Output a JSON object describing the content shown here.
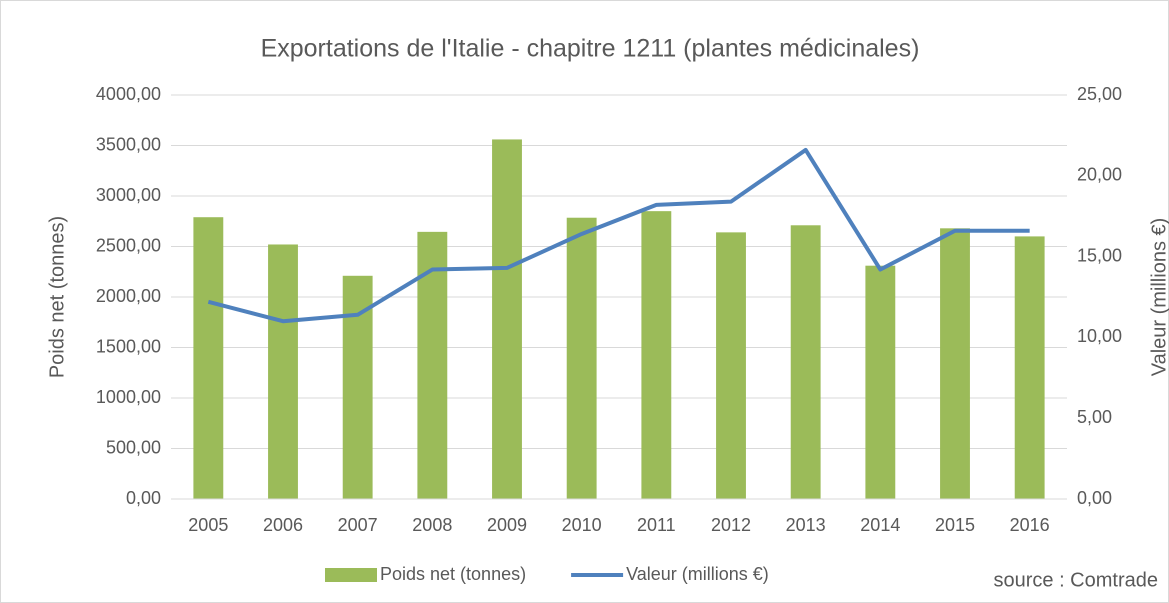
{
  "chart_data": {
    "type": "bar_line",
    "title": "Exportations de l'Italie - chapitre 1211 (plantes médicinales)",
    "y_label": "Poids net (tonnes)",
    "y2_label": "Valeur (millions €)",
    "source": "source : Comtrade",
    "categories": [
      "2005",
      "2006",
      "2007",
      "2008",
      "2009",
      "2010",
      "2011",
      "2012",
      "2013",
      "2014",
      "2015",
      "2016"
    ],
    "series": [
      {
        "name": "Poids net (tonnes)",
        "type": "bar",
        "color": "#9bbb59",
        "values": [
          2790,
          2520,
          2210,
          2645,
          3560,
          2785,
          2850,
          2640,
          2710,
          2310,
          2680,
          2600
        ]
      },
      {
        "name": "Valeur (millions €)",
        "type": "line",
        "axis": "y2",
        "color": "#4f81bd",
        "values": [
          12.2,
          11.0,
          11.4,
          14.2,
          14.3,
          16.4,
          18.2,
          18.4,
          21.6,
          14.2,
          16.6,
          16.6
        ]
      }
    ],
    "ylim": [
      0,
      4000
    ],
    "yticks": [
      {
        "value": 0,
        "label": "0,00"
      },
      {
        "value": 500,
        "label": "500,00"
      },
      {
        "value": 1000,
        "label": "1000,00"
      },
      {
        "value": 1500,
        "label": "1500,00"
      },
      {
        "value": 2000,
        "label": "2000,00"
      },
      {
        "value": 2500,
        "label": "2500,00"
      },
      {
        "value": 3000,
        "label": "3000,00"
      },
      {
        "value": 3500,
        "label": "3500,00"
      },
      {
        "value": 4000,
        "label": "4000,00"
      }
    ],
    "y2lim": [
      0,
      25
    ],
    "y2ticks": [
      {
        "value": 0,
        "label": "0,00"
      },
      {
        "value": 5,
        "label": "5,00"
      },
      {
        "value": 10,
        "label": "10,00"
      },
      {
        "value": 15,
        "label": "15,00"
      },
      {
        "value": 20,
        "label": "20,00"
      },
      {
        "value": 25,
        "label": "25,00"
      }
    ],
    "grid": true,
    "legend": "bottom"
  }
}
